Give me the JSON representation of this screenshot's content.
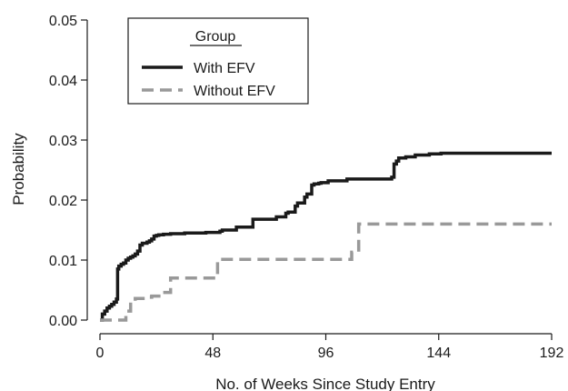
{
  "chart_data": {
    "type": "line",
    "step": true,
    "xlabel": "No. of Weeks Since Study Entry",
    "ylabel": "Probability",
    "xlim": [
      0,
      192
    ],
    "ylim": [
      0,
      0.05
    ],
    "xticks": [
      0,
      48,
      96,
      144,
      192
    ],
    "xtick_labels": [
      "0",
      "48",
      "96",
      "144",
      "192"
    ],
    "yticks": [
      0,
      0.01,
      0.02,
      0.03,
      0.04,
      0.05
    ],
    "ytick_labels": [
      "0.00",
      "0.01",
      "0.02",
      "0.03",
      "0.04",
      "0.05"
    ],
    "grid": false,
    "legend": {
      "title": "Group",
      "position": "top-left"
    },
    "series": [
      {
        "name": "With EFV",
        "color": "#1a1a1a",
        "style": "solid",
        "x": [
          0,
          1,
          2,
          3,
          4,
          5,
          6,
          7,
          7.5,
          8,
          9,
          10,
          11,
          12,
          13,
          14,
          15,
          16,
          17,
          18,
          19,
          20,
          21,
          22,
          23,
          24,
          25,
          27,
          30,
          33,
          36,
          40,
          45,
          51,
          52,
          58,
          65,
          75,
          79,
          80,
          83,
          84,
          87,
          88,
          90,
          91,
          93,
          94,
          97,
          105,
          115,
          124,
          125,
          126,
          127,
          130,
          134,
          140,
          145,
          150,
          192
        ],
        "y": [
          0.0,
          0.001,
          0.0015,
          0.002,
          0.0023,
          0.0026,
          0.003,
          0.0035,
          0.0085,
          0.009,
          0.0093,
          0.0095,
          0.01,
          0.0103,
          0.0105,
          0.0107,
          0.011,
          0.0115,
          0.0125,
          0.0128,
          0.0128,
          0.013,
          0.0132,
          0.0135,
          0.014,
          0.0141,
          0.0142,
          0.0143,
          0.0144,
          0.0144,
          0.0145,
          0.0145,
          0.0146,
          0.0148,
          0.015,
          0.0155,
          0.0168,
          0.0172,
          0.0178,
          0.018,
          0.019,
          0.0195,
          0.0205,
          0.021,
          0.0225,
          0.0227,
          0.0228,
          0.0229,
          0.0232,
          0.0235,
          0.0235,
          0.0238,
          0.026,
          0.0265,
          0.027,
          0.0272,
          0.0275,
          0.0277,
          0.0278,
          0.0278,
          0.0278
        ]
      },
      {
        "name": "Without EFV",
        "color": "#999999",
        "style": "dashed",
        "x": [
          0,
          11,
          13,
          15,
          19,
          22,
          26,
          30,
          50,
          107,
          110,
          192
        ],
        "y": [
          0.0,
          0.0015,
          0.0032,
          0.0036,
          0.0038,
          0.004,
          0.0046,
          0.007,
          0.0101,
          0.0113,
          0.016,
          0.016
        ]
      }
    ]
  }
}
